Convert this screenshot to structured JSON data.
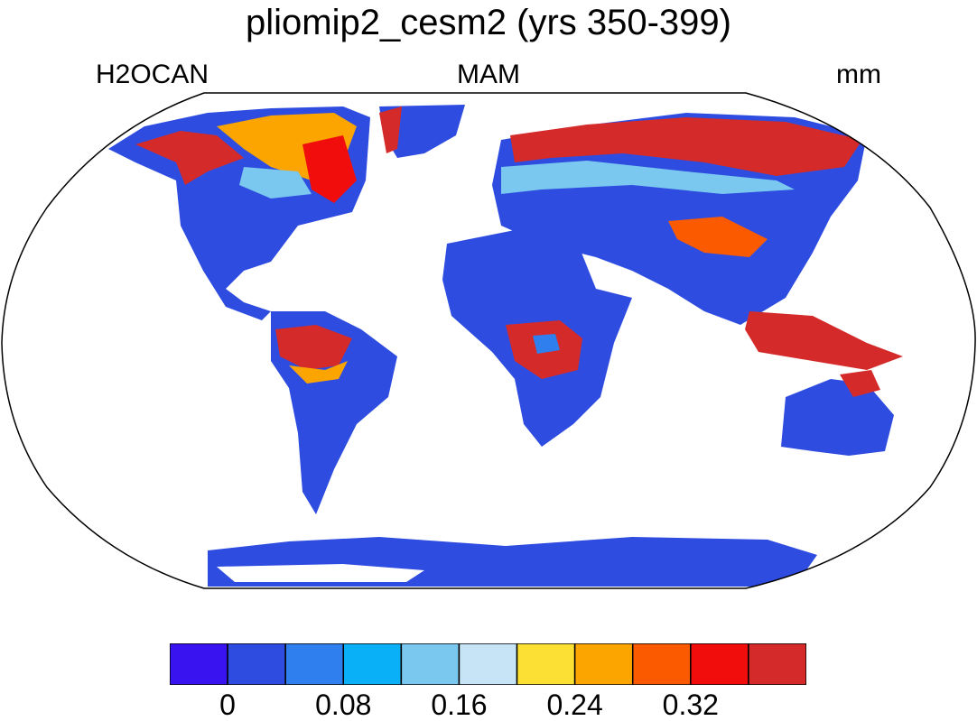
{
  "title": "pliomip2_cesm2 (yrs 350-399)",
  "left_label": "H2OCAN",
  "center_label": "MAM",
  "right_label": "mm",
  "colorbar": {
    "colors": [
      "#3a14f0",
      "#2e4de0",
      "#2f7fee",
      "#0ab0f7",
      "#7ac7ef",
      "#c6e4f6",
      "#fce033",
      "#fca400",
      "#fb5a00",
      "#f20d0d",
      "#d42a2a"
    ],
    "tick_labels": [
      "0",
      "0.08",
      "0.16",
      "0.24",
      "0.32"
    ],
    "tick_values": [
      0,
      0.08,
      0.16,
      0.24,
      0.32
    ]
  },
  "map": {
    "projection": "Robinson",
    "ocean_color": "#ffffff",
    "land_base_color": "#2e4de0",
    "regions": [
      {
        "name": "Amazon",
        "level": "high"
      },
      {
        "name": "Congo",
        "level": "high"
      },
      {
        "name": "Maritime Continent",
        "level": "high"
      },
      {
        "name": "Boreal Eurasia",
        "level": "high"
      },
      {
        "name": "Boreal North America",
        "level": "high"
      }
    ]
  }
}
